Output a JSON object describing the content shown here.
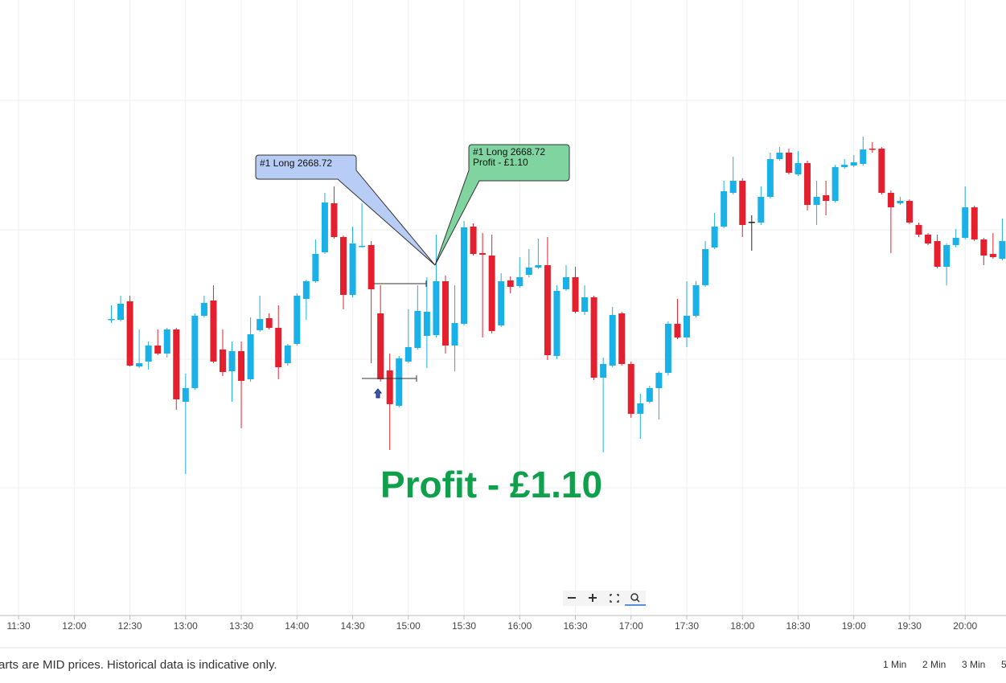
{
  "chart_data": {
    "type": "candlestick",
    "x": [
      "12:20",
      "12:25",
      "12:30",
      "12:35",
      "12:40",
      "12:45",
      "12:50",
      "12:55",
      "13:00",
      "13:05",
      "13:10",
      "13:15",
      "13:20",
      "13:25",
      "13:30",
      "13:35",
      "13:40",
      "13:45",
      "13:50",
      "13:55",
      "14:00",
      "14:05",
      "14:10",
      "14:15",
      "14:20",
      "14:25",
      "14:30",
      "14:35",
      "14:40",
      "14:45",
      "14:50",
      "14:55",
      "15:00",
      "15:05",
      "15:10",
      "15:15",
      "15:20",
      "15:25",
      "15:30",
      "15:35",
      "15:40",
      "15:45",
      "15:50",
      "15:55",
      "16:00",
      "16:05",
      "16:10",
      "16:15",
      "16:20",
      "16:25",
      "16:30",
      "16:35",
      "16:40",
      "16:45",
      "16:50",
      "16:55",
      "17:00",
      "17:05",
      "17:10",
      "17:15",
      "17:20",
      "17:25",
      "17:30",
      "17:35",
      "17:40",
      "17:45",
      "17:50",
      "17:55",
      "18:00",
      "18:05",
      "18:10",
      "18:15",
      "18:20",
      "18:25",
      "18:30",
      "18:35",
      "18:40",
      "18:45",
      "18:50",
      "18:55",
      "19:00",
      "19:05",
      "19:10",
      "19:15",
      "19:20",
      "19:25",
      "19:30",
      "19:35",
      "19:40",
      "19:45",
      "19:50",
      "19:55",
      "20:00",
      "20:05",
      "20:10",
      "20:15",
      "20:20"
    ],
    "open": [
      2668.27,
      2668.27,
      2668.5,
      2667.69,
      2667.75,
      2667.95,
      2667.85,
      2668.15,
      2667.25,
      2667.42,
      2668.32,
      2668.51,
      2667.9,
      2667.63,
      2667.88,
      2667.53,
      2668.14,
      2668.29,
      2668.17,
      2667.73,
      2667.97,
      2668.53,
      2668.75,
      2669.11,
      2669.72,
      2669.3,
      2668.58,
      2669.18,
      2669.2,
      2668.35,
      2667.64,
      2667.2,
      2667.75,
      2667.92,
      2668.07,
      2668.08,
      2668.75,
      2667.95,
      2668.22,
      2669.43,
      2669.1,
      2669.07,
      2668.2,
      2668.76,
      2668.69,
      2668.83,
      2668.92,
      2668.95,
      2667.82,
      2668.65,
      2668.8,
      2668.37,
      2668.55,
      2667.55,
      2667.7,
      2668.35,
      2667.72,
      2667.1,
      2667.25,
      2667.42,
      2667.61,
      2668.22,
      2668.05,
      2668.32,
      2668.7,
      2669.17,
      2669.43,
      2669.85,
      2670.0,
      2669.49,
      2669.48,
      2669.8,
      2670.27,
      2670.35,
      2670.08,
      2670.22,
      2669.7,
      2669.82,
      2669.75,
      2670.17,
      2670.19,
      2670.21,
      2670.4,
      2670.4,
      2669.85,
      2669.72,
      2669.75,
      2669.45,
      2669.33,
      2669.25,
      2668.93,
      2669.2,
      2669.29,
      2669.67,
      2669.27,
      2669.09,
      2669.03
    ],
    "high": [
      2668.45,
      2668.57,
      2668.57,
      2668.15,
      2668.0,
      2668.15,
      2668.17,
      2668.17,
      2667.6,
      2668.35,
      2668.57,
      2668.7,
      2668.15,
      2668.0,
      2668.0,
      2668.3,
      2668.57,
      2668.35,
      2668.45,
      2667.97,
      2668.6,
      2668.77,
      2669.27,
      2669.85,
      2669.93,
      2669.32,
      2669.43,
      2669.72,
      2669.25,
      2668.7,
      2667.85,
      2667.82,
      2668.4,
      2668.7,
      2668.8,
      2669.33,
      2668.82,
      2668.7,
      2669.5,
      2669.47,
      2669.35,
      2669.33,
      2668.85,
      2668.81,
      2669.05,
      2669.15,
      2669.28,
      2669.3,
      2668.7,
      2668.95,
      2668.93,
      2668.7,
      2668.57,
      2667.8,
      2668.43,
      2668.37,
      2667.75,
      2667.35,
      2667.45,
      2667.63,
      2668.25,
      2668.53,
      2668.75,
      2668.75,
      2669.25,
      2669.6,
      2670.0,
      2670.3,
      2670.03,
      2669.57,
      2669.93,
      2670.35,
      2670.42,
      2670.4,
      2670.37,
      2670.25,
      2670.0,
      2670.0,
      2670.2,
      2670.27,
      2670.32,
      2670.55,
      2670.48,
      2670.42,
      2669.88,
      2669.8,
      2669.77,
      2669.48,
      2669.35,
      2669.33,
      2669.22,
      2669.4,
      2669.93,
      2669.69,
      2669.29,
      2669.35,
      2669.53
    ],
    "low": [
      2668.23,
      2668.25,
      2667.69,
      2667.67,
      2667.65,
      2667.83,
      2667.8,
      2667.15,
      2666.35,
      2667.4,
      2668.3,
      2667.73,
      2667.57,
      2667.25,
      2666.92,
      2667.5,
      2668.12,
      2668.15,
      2667.53,
      2667.7,
      2667.95,
      2668.27,
      2668.73,
      2669.09,
      2669.28,
      2668.4,
      2668.55,
      2669.17,
      2667.73,
      2667.5,
      2666.65,
      2667.18,
      2667.73,
      2667.9,
      2667.67,
      2668.05,
      2667.85,
      2667.63,
      2668.2,
      2669.07,
      2668.05,
      2668.1,
      2668.18,
      2668.6,
      2668.67,
      2668.8,
      2668.9,
      2667.77,
      2667.78,
      2668.63,
      2668.35,
      2668.33,
      2667.52,
      2666.62,
      2667.68,
      2667.7,
      2667.05,
      2666.79,
      2667.23,
      2667.03,
      2667.58,
      2668.03,
      2667.93,
      2668.3,
      2668.68,
      2669.15,
      2669.41,
      2669.83,
      2669.3,
      2669.13,
      2669.45,
      2669.78,
      2670.25,
      2670.08,
      2670.06,
      2669.63,
      2669.45,
      2669.57,
      2669.73,
      2670.15,
      2670.17,
      2670.19,
      2670.35,
      2669.83,
      2669.1,
      2669.7,
      2669.46,
      2669.3,
      2669.2,
      2668.91,
      2668.7,
      2669.17,
      2669.27,
      2669.25,
      2668.95,
      2669.03,
      2669.01
    ],
    "close": [
      2668.28,
      2668.47,
      2667.7,
      2667.73,
      2667.95,
      2667.85,
      2668.15,
      2667.28,
      2667.42,
      2668.32,
      2668.48,
      2667.75,
      2667.62,
      2667.88,
      2667.51,
      2668.09,
      2668.28,
      2668.17,
      2667.68,
      2667.95,
      2668.57,
      2668.75,
      2669.09,
      2669.73,
      2669.3,
      2668.58,
      2669.22,
      2669.19,
      2668.65,
      2667.53,
      2667.22,
      2667.79,
      2667.93,
      2668.38,
      2668.37,
      2668.75,
      2667.95,
      2668.23,
      2669.42,
      2669.09,
      2669.08,
      2668.13,
      2668.75,
      2668.68,
      2668.8,
      2668.92,
      2668.95,
      2667.83,
      2668.63,
      2668.8,
      2668.37,
      2668.55,
      2667.55,
      2667.72,
      2668.33,
      2667.72,
      2667.1,
      2667.23,
      2667.42,
      2667.61,
      2668.22,
      2668.05,
      2668.32,
      2668.7,
      2669.15,
      2669.43,
      2669.87,
      2670.0,
      2669.45,
      2669.49,
      2669.8,
      2670.27,
      2670.35,
      2670.1,
      2670.22,
      2669.7,
      2669.8,
      2669.75,
      2670.17,
      2670.2,
      2670.23,
      2670.39,
      2670.39,
      2669.85,
      2669.67,
      2669.75,
      2669.48,
      2669.33,
      2669.22,
      2668.93,
      2669.2,
      2669.29,
      2669.67,
      2669.27,
      2669.07,
      2669.05,
      2669.25
    ],
    "xlim": [
      "11:20",
      "20:22"
    ],
    "xticks": [
      "11:30",
      "12:00",
      "12:30",
      "13:00",
      "13:30",
      "14:00",
      "14:30",
      "15:00",
      "15:30",
      "16:00",
      "16:30",
      "17:00",
      "17:30",
      "18:00",
      "18:30",
      "19:00",
      "19:30",
      "20:00"
    ],
    "ylim": [
      2664.6,
      2672.25
    ],
    "up_color": "#1ab0e8",
    "down_color": "#e5202e",
    "flat_color": "#222222",
    "level_lines": [
      2668.72,
      2667.54
    ],
    "entry_label": "#1 Long 2668.72",
    "exit_label": [
      "#1 Long 2668.72",
      "Profit - £1.10"
    ],
    "headline": "Profit - £1.10"
  },
  "footer": {
    "note": "arts are MID prices. Historical data is indicative only.",
    "intervals": [
      "1 Min",
      "2 Min",
      "3 Min",
      "5"
    ]
  }
}
